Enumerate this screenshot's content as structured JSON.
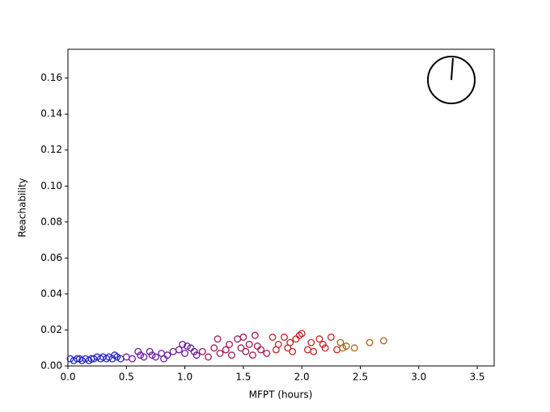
{
  "chart_data": {
    "type": "scatter",
    "xlabel": "MFPT (hours)",
    "ylabel": "Reachability",
    "xlim": [
      0,
      3.645
    ],
    "ylim": [
      0,
      0.176
    ],
    "xticks": [
      {
        "value": 0,
        "label": "0.0"
      },
      {
        "value": 0.5,
        "label": "0.5"
      },
      {
        "value": 1,
        "label": "1.0"
      },
      {
        "value": 1.5,
        "label": "1.5"
      },
      {
        "value": 2,
        "label": "2.0"
      },
      {
        "value": 2.5,
        "label": "2.5"
      },
      {
        "value": 3,
        "label": "3.0"
      },
      {
        "value": 3.5,
        "label": "3.5"
      }
    ],
    "yticks": [
      {
        "value": 0,
        "label": "0.00"
      },
      {
        "value": 0.02,
        "label": "0.02"
      },
      {
        "value": 0.04,
        "label": "0.04"
      },
      {
        "value": 0.06,
        "label": "0.06"
      },
      {
        "value": 0.08,
        "label": "0.08"
      },
      {
        "value": 0.1,
        "label": "0.10"
      },
      {
        "value": 0.12,
        "label": "0.12"
      },
      {
        "value": 0.14,
        "label": "0.14"
      },
      {
        "value": 0.16,
        "label": "0.16"
      }
    ],
    "grid": false,
    "series": [
      {
        "color": "#2424c4",
        "x": [
          0.02,
          0.05,
          0.08,
          0.1,
          0.12,
          0.15,
          0.18,
          0.2,
          0.22,
          0.25,
          0.28,
          0.3,
          0.33,
          0.35,
          0.38,
          0.4,
          0.42,
          0.45
        ],
        "values": [
          0.004,
          0.003,
          0.004,
          0.004,
          0.003,
          0.004,
          0.003,
          0.004,
          0.004,
          0.005,
          0.004,
          0.005,
          0.004,
          0.005,
          0.004,
          0.006,
          0.005,
          0.004
        ]
      },
      {
        "color": "#6a1c9c",
        "x": [
          0.5,
          0.55,
          0.6,
          0.62,
          0.65,
          0.7,
          0.72,
          0.75,
          0.8,
          0.82,
          0.85,
          0.9,
          0.95,
          0.98,
          1.0,
          1.02,
          1.05,
          1.08,
          1.1
        ],
        "values": [
          0.005,
          0.004,
          0.008,
          0.006,
          0.005,
          0.008,
          0.006,
          0.005,
          0.007,
          0.004,
          0.006,
          0.008,
          0.009,
          0.012,
          0.007,
          0.011,
          0.01,
          0.008,
          0.006
        ]
      },
      {
        "color": "#a01852",
        "x": [
          1.15,
          1.2,
          1.25,
          1.28,
          1.3,
          1.35,
          1.38,
          1.4,
          1.45,
          1.48,
          1.5,
          1.52,
          1.55,
          1.58,
          1.6,
          1.62,
          1.65,
          1.7
        ],
        "values": [
          0.008,
          0.005,
          0.01,
          0.015,
          0.007,
          0.009,
          0.012,
          0.006,
          0.015,
          0.01,
          0.016,
          0.008,
          0.012,
          0.006,
          0.017,
          0.011,
          0.009,
          0.007
        ]
      },
      {
        "color": "#c42222",
        "x": [
          1.75,
          1.78,
          1.8,
          1.85,
          1.88,
          1.9,
          1.92,
          1.95,
          1.98,
          2.0,
          2.05,
          2.08,
          2.1,
          2.15,
          2.18,
          2.2,
          2.25,
          2.3
        ],
        "values": [
          0.016,
          0.009,
          0.012,
          0.016,
          0.01,
          0.013,
          0.008,
          0.015,
          0.017,
          0.018,
          0.009,
          0.013,
          0.008,
          0.015,
          0.012,
          0.01,
          0.016,
          0.009
        ]
      },
      {
        "color": "#a66414",
        "x": [
          2.33,
          2.35,
          2.38,
          2.45,
          2.58,
          2.7
        ],
        "values": [
          0.013,
          0.01,
          0.011,
          0.01,
          0.013,
          0.014
        ]
      }
    ]
  }
}
